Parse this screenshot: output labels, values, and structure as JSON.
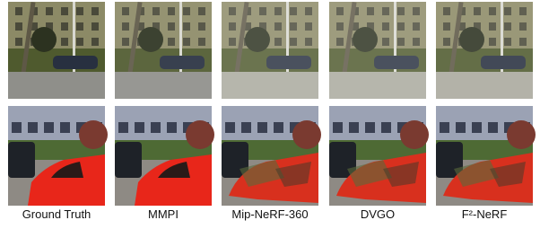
{
  "captions": [
    "Ground Truth",
    "MMPI",
    "Mip-NeRF-360",
    "DVGO",
    "F²-NeRF"
  ]
}
